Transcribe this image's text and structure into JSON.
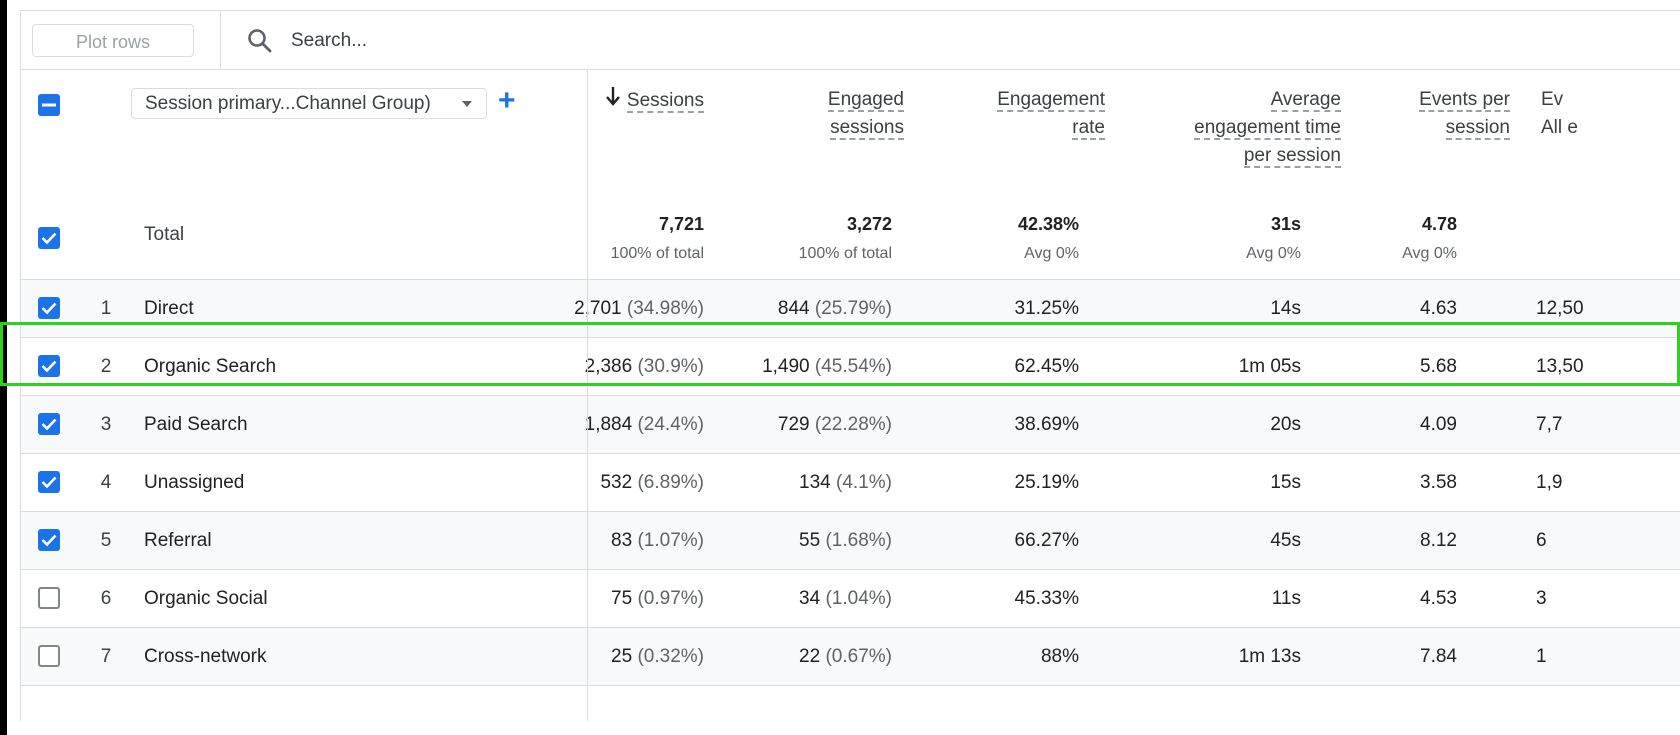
{
  "toolbar": {
    "plot_rows_label": "Plot rows",
    "search_placeholder": "Search..."
  },
  "dimension": {
    "label": "Session primary...Channel Group)",
    "add_label": "+"
  },
  "columns": [
    {
      "line1": "Sessions",
      "line2": "",
      "line3": "",
      "sorted": true
    },
    {
      "line1": "Engaged",
      "line2": "sessions",
      "line3": ""
    },
    {
      "line1": "Engagement",
      "line2": "rate",
      "line3": ""
    },
    {
      "line1": "Average",
      "line2": "engagement time",
      "line3": "per session"
    },
    {
      "line1": "Events per",
      "line2": "session",
      "line3": ""
    },
    {
      "line1": "Ev",
      "line2": "All e",
      "line3": ""
    }
  ],
  "total": {
    "label": "Total",
    "values": [
      {
        "v": "7,721",
        "s": "100% of total"
      },
      {
        "v": "3,272",
        "s": "100% of total"
      },
      {
        "v": "42.38%",
        "s": "Avg 0%"
      },
      {
        "v": "31s",
        "s": "Avg 0%"
      },
      {
        "v": "4.78",
        "s": "Avg 0%"
      }
    ]
  },
  "rows": [
    {
      "rank": "1",
      "channel": "Direct",
      "checked": true,
      "sessions": "2,701",
      "sessions_pct": "(34.98%)",
      "engaged": "844",
      "engaged_pct": "(25.79%)",
      "rate": "31.25%",
      "avg_time": "14s",
      "events": "4.63",
      "ev_all": "12,50"
    },
    {
      "rank": "2",
      "channel": "Organic Search",
      "checked": true,
      "sessions": "2,386",
      "sessions_pct": "(30.9%)",
      "engaged": "1,490",
      "engaged_pct": "(45.54%)",
      "rate": "62.45%",
      "avg_time": "1m 05s",
      "events": "5.68",
      "ev_all": "13,50"
    },
    {
      "rank": "3",
      "channel": "Paid Search",
      "checked": true,
      "sessions": "1,884",
      "sessions_pct": "(24.4%)",
      "engaged": "729",
      "engaged_pct": "(22.28%)",
      "rate": "38.69%",
      "avg_time": "20s",
      "events": "4.09",
      "ev_all": "7,7"
    },
    {
      "rank": "4",
      "channel": "Unassigned",
      "checked": true,
      "sessions": "532",
      "sessions_pct": "(6.89%)",
      "engaged": "134",
      "engaged_pct": "(4.1%)",
      "rate": "25.19%",
      "avg_time": "15s",
      "events": "3.58",
      "ev_all": "1,9"
    },
    {
      "rank": "5",
      "channel": "Referral",
      "checked": true,
      "sessions": "83",
      "sessions_pct": "(1.07%)",
      "engaged": "55",
      "engaged_pct": "(1.68%)",
      "rate": "66.27%",
      "avg_time": "45s",
      "events": "8.12",
      "ev_all": "6"
    },
    {
      "rank": "6",
      "channel": "Organic Social",
      "checked": false,
      "sessions": "75",
      "sessions_pct": "(0.97%)",
      "engaged": "34",
      "engaged_pct": "(1.04%)",
      "rate": "45.33%",
      "avg_time": "11s",
      "events": "4.53",
      "ev_all": "3"
    },
    {
      "rank": "7",
      "channel": "Cross-network",
      "checked": false,
      "sessions": "25",
      "sessions_pct": "(0.32%)",
      "engaged": "22",
      "engaged_pct": "(0.67%)",
      "rate": "88%",
      "avg_time": "1m 13s",
      "events": "7.84",
      "ev_all": "1"
    }
  ],
  "colors": {
    "accent": "#1a73e8",
    "highlight": "#2fd11f",
    "divider": "#dadce0"
  }
}
